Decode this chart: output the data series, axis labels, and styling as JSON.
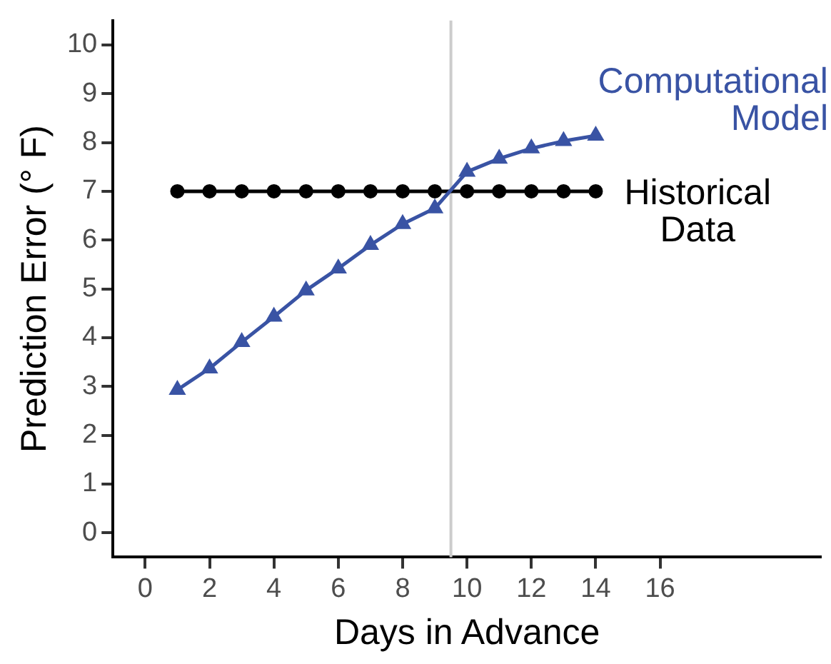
{
  "chart_data": {
    "type": "line",
    "xlabel": "Days in Advance",
    "ylabel": "Prediction Error (° F)",
    "xlim": [
      -1,
      21
    ],
    "xticks": [
      0,
      2,
      4,
      6,
      8,
      10,
      12,
      14,
      16
    ],
    "ylim": [
      -0.5,
      10.5
    ],
    "yticks": [
      0,
      1,
      2,
      3,
      4,
      5,
      6,
      7,
      8,
      9,
      10
    ],
    "grid": false,
    "legend": false,
    "ref_lines": [
      {
        "axis": "x",
        "value": 9.5,
        "color": "#cccccc"
      }
    ],
    "series": [
      {
        "name": "Computational Model",
        "color": "#3953a4",
        "marker": "triangle",
        "x": [
          1,
          2,
          3,
          4,
          5,
          6,
          7,
          8,
          9,
          10,
          11,
          12,
          13,
          14
        ],
        "values": [
          2.93,
          3.37,
          3.91,
          4.43,
          4.97,
          5.42,
          5.9,
          6.33,
          6.65,
          7.4,
          7.67,
          7.88,
          8.03,
          8.14
        ]
      },
      {
        "name": "Historical Data",
        "color": "#000000",
        "marker": "circle",
        "x": [
          1,
          2,
          3,
          4,
          5,
          6,
          7,
          8,
          9,
          10,
          11,
          12,
          13,
          14
        ],
        "values": [
          7,
          7,
          7,
          7,
          7,
          7,
          7,
          7,
          7,
          7,
          7,
          7,
          7,
          7
        ]
      }
    ]
  }
}
